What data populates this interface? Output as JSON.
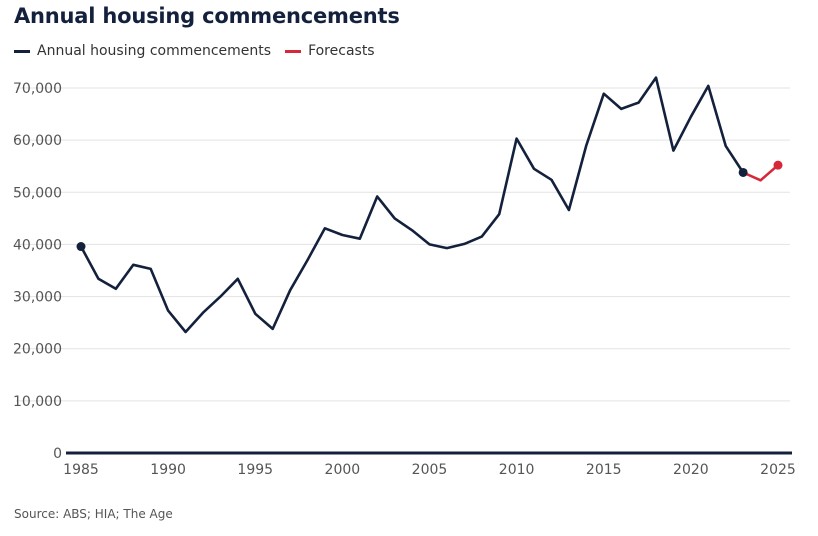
{
  "title": "Annual housing commencements",
  "legend": [
    {
      "label": "Annual housing commencements",
      "color": "#14213d"
    },
    {
      "label": "Forecasts",
      "color": "#d62839"
    }
  ],
  "source": "Source: ABS; HIA; The Age",
  "chart_data": {
    "type": "line",
    "title": "Annual housing commencements",
    "xlabel": "",
    "ylabel": "",
    "xlim": [
      1985,
      2025
    ],
    "ylim": [
      0,
      70000
    ],
    "x_ticks": [
      1985,
      1990,
      1995,
      2000,
      2005,
      2010,
      2015,
      2020,
      2025
    ],
    "x_tick_labels": [
      "1985",
      "1990",
      "1995",
      "2000",
      "2005",
      "2010",
      "2015",
      "2020",
      "2025"
    ],
    "y_ticks": [
      0,
      10000,
      20000,
      30000,
      40000,
      50000,
      60000,
      70000
    ],
    "y_tick_labels": [
      "0",
      "10,000",
      "20,000",
      "30,000",
      "40,000",
      "50,000",
      "60,000",
      "70,000"
    ],
    "grid": true,
    "series": [
      {
        "name": "Annual housing commencements",
        "color": "#14213d",
        "x": [
          1985,
          1986,
          1987,
          1988,
          1989,
          1990,
          1991,
          1992,
          1993,
          1994,
          1995,
          1996,
          1997,
          1998,
          1999,
          2000,
          2001,
          2002,
          2003,
          2004,
          2005,
          2006,
          2007,
          2008,
          2009,
          2010,
          2011,
          2012,
          2013,
          2014,
          2015,
          2016,
          2017,
          2018,
          2019,
          2020,
          2021,
          2022,
          2023
        ],
        "values": [
          39600,
          33400,
          31500,
          36100,
          35300,
          27300,
          23200,
          26900,
          30000,
          33400,
          26700,
          23800,
          31200,
          37000,
          43100,
          41800,
          41100,
          49200,
          45000,
          42700,
          40000,
          39300,
          40100,
          41500,
          45800,
          60300,
          54500,
          52400,
          46600,
          59000,
          68900,
          66000,
          67200,
          72000,
          58000,
          64500,
          70400,
          58900,
          53800
        ],
        "endpoint_markers": true
      },
      {
        "name": "Forecasts",
        "color": "#d62839",
        "x": [
          2023,
          2024,
          2025
        ],
        "values": [
          53800,
          52300,
          55200
        ],
        "endpoint_markers": "end"
      }
    ]
  }
}
